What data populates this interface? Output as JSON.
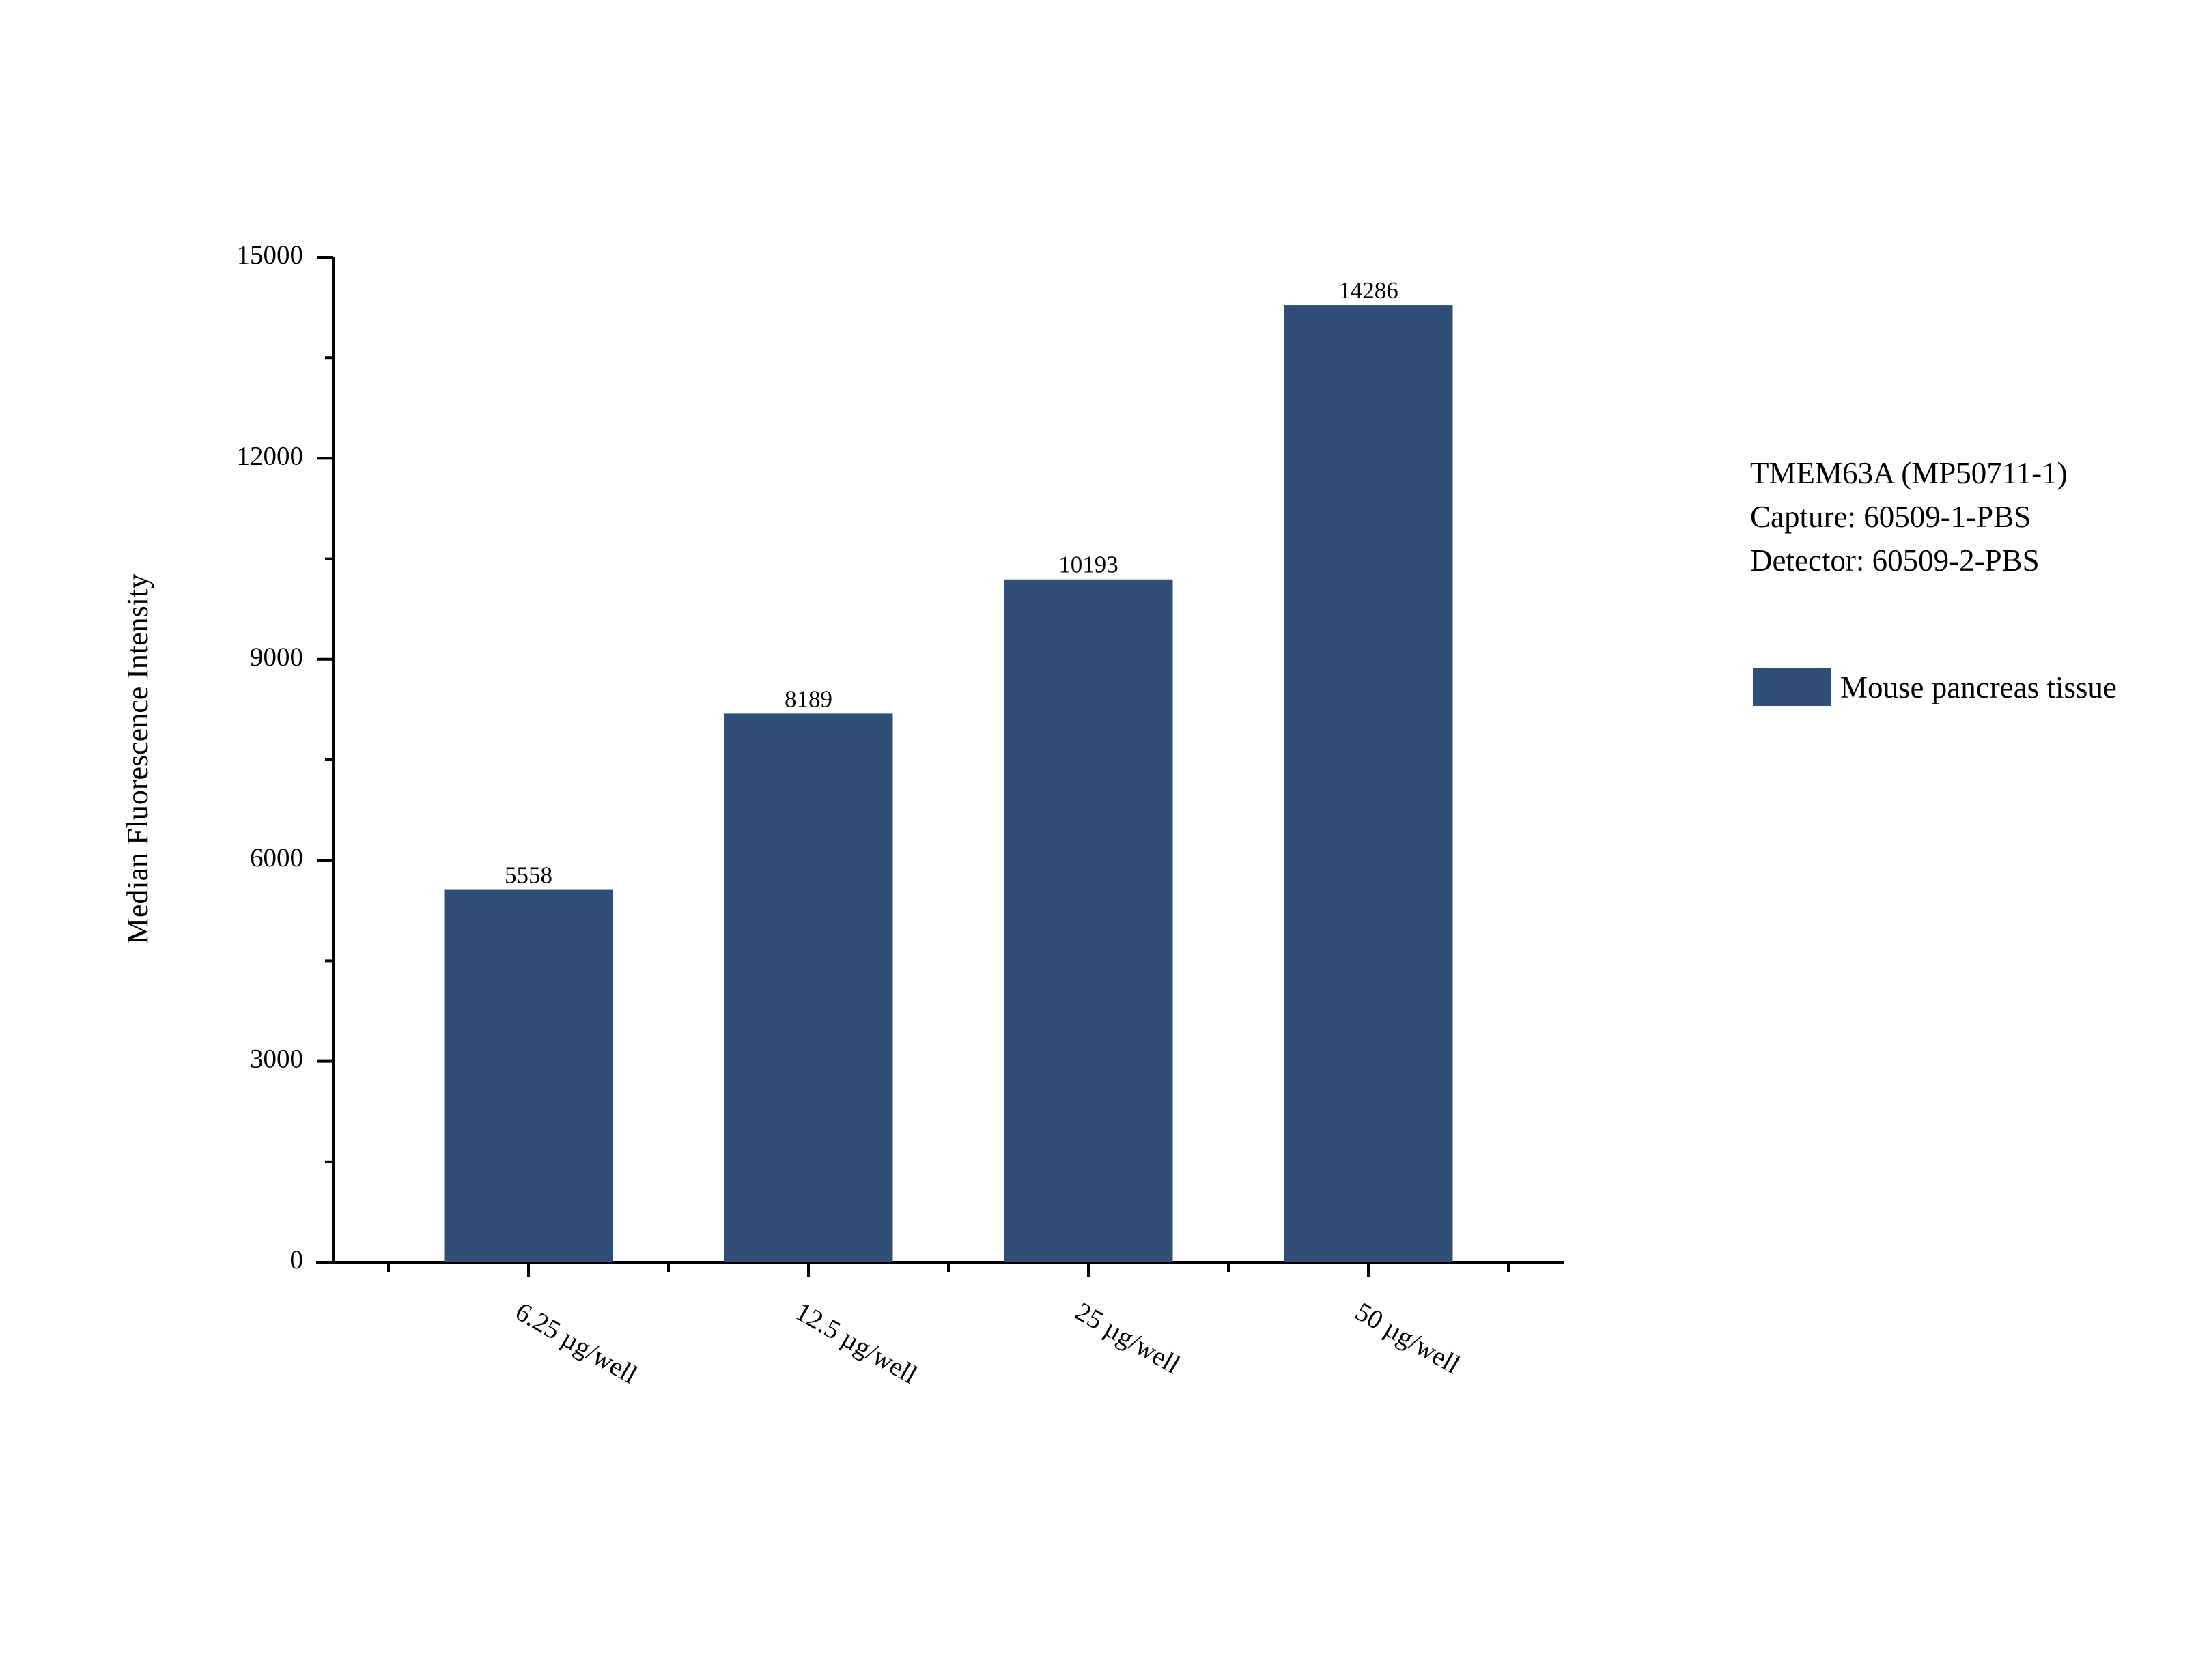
{
  "chart_data": {
    "type": "bar",
    "categories": [
      "6.25 µg/well",
      "12.5 µg/well",
      "25 µg/well",
      "50 µg/well"
    ],
    "series": [
      {
        "name": "Mouse pancreas tissue",
        "color": "#2f4f79",
        "values": [
          5558,
          8189,
          10193,
          14286
        ]
      }
    ],
    "y_label": "Median Fluorescence Intensity",
    "annotations": [
      "TMEM63A (MP50711-1)",
      "Capture: 60509-1-PBS",
      "Detector: 60509-2-PBS"
    ],
    "ylim": [
      0,
      15000
    ],
    "yticks": [
      0,
      3000,
      6000,
      9000,
      12000,
      15000
    ],
    "grid": false,
    "legend": "right"
  }
}
